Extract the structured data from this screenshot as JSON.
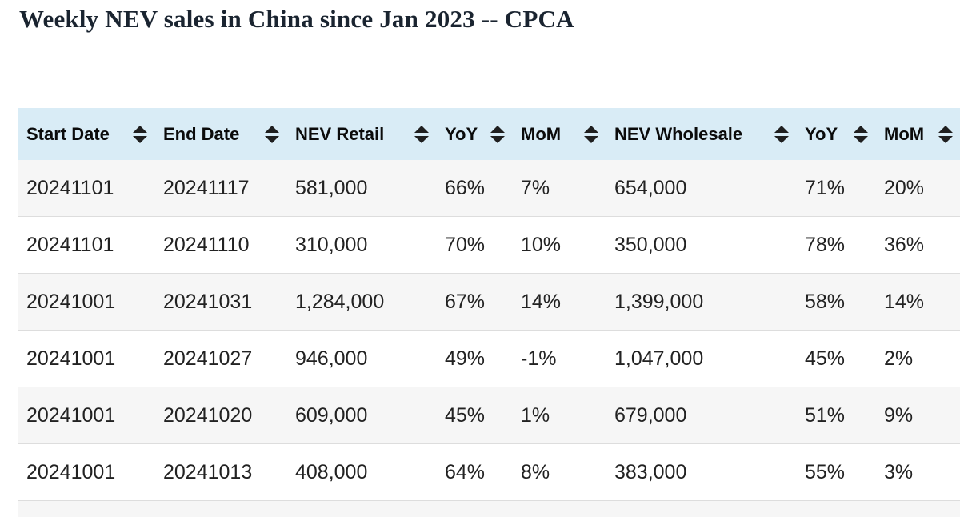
{
  "header": {
    "title": "Weekly NEV sales in China since Jan 2023 -- CPCA"
  },
  "table": {
    "columns": [
      {
        "key": "start-date",
        "label": "Start Date",
        "sort_icon": "sort-icon"
      },
      {
        "key": "end-date",
        "label": "End Date",
        "sort_icon": "sort-icon"
      },
      {
        "key": "nev-retail",
        "label": "NEV Retail",
        "sort_icon": "sort-icon"
      },
      {
        "key": "yoy-retail",
        "label": "YoY",
        "sort_icon": "sort-icon"
      },
      {
        "key": "mom-retail",
        "label": "MoM",
        "sort_icon": "sort-icon"
      },
      {
        "key": "nev-wholesale",
        "label": "NEV Wholesale",
        "sort_icon": "sort-icon"
      },
      {
        "key": "yoy-wholesale",
        "label": "YoY",
        "sort_icon": "sort-icon"
      },
      {
        "key": "mom-wholesale",
        "label": "MoM",
        "sort_icon": "sort-icon"
      }
    ],
    "rows": [
      [
        "20241101",
        "20241117",
        "581,000",
        "66%",
        "7%",
        "654,000",
        "71%",
        "20%"
      ],
      [
        "20241101",
        "20241110",
        "310,000",
        "70%",
        "10%",
        "350,000",
        "78%",
        "36%"
      ],
      [
        "20241001",
        "20241031",
        "1,284,000",
        "67%",
        "14%",
        "1,399,000",
        "58%",
        "14%"
      ],
      [
        "20241001",
        "20241027",
        "946,000",
        "49%",
        "-1%",
        "1,047,000",
        "45%",
        "2%"
      ],
      [
        "20241001",
        "20241020",
        "609,000",
        "45%",
        "1%",
        "679,000",
        "51%",
        "9%"
      ],
      [
        "20241001",
        "20241013",
        "408,000",
        "64%",
        "8%",
        "383,000",
        "55%",
        "3%"
      ]
    ]
  },
  "colors": {
    "header_bg": "#d9ecf6",
    "stripe_bg": "#f6f6f6",
    "row_border": "#dddddd",
    "title_text": "#1a2430",
    "sort_icon": "#1f1f1f"
  }
}
